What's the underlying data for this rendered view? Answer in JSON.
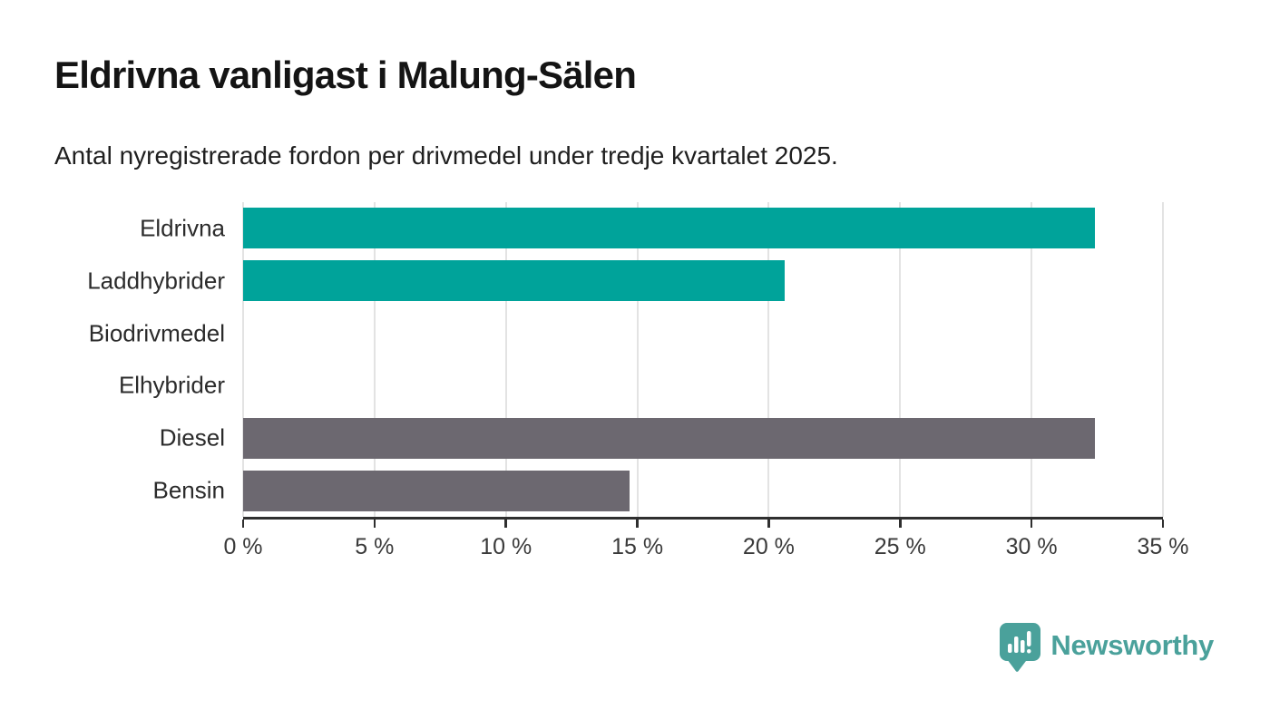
{
  "title": "Eldrivna vanligast i Malung-Sälen",
  "subtitle": "Antal nyregistrerade fordon per drivmedel under tredje kvartalet 2025.",
  "colors": {
    "electric_bar": "#00a39a",
    "fossil_bar": "#6c6870",
    "gridline": "#e3e3e3",
    "axis_line": "#2f2f2f",
    "tick_mark": "#2f2f2f",
    "tick_text": "#3a3a3a",
    "category_text": "#2b2b2b",
    "title_text": "#141414",
    "logo_teal": "#4aa19b"
  },
  "chart_data": {
    "type": "bar",
    "orientation": "horizontal",
    "title": "Eldrivna vanligast i Malung-Sälen",
    "subtitle": "Antal nyregistrerade fordon per drivmedel under tredje kvartalet 2025.",
    "categories": [
      "Eldrivna",
      "Laddhybrider",
      "Biodrivmedel",
      "Elhybrider",
      "Diesel",
      "Bensin"
    ],
    "values": [
      32.4,
      20.6,
      0,
      0,
      32.4,
      14.7
    ],
    "bar_colors": [
      "#00a39a",
      "#00a39a",
      "#00a39a",
      "#00a39a",
      "#6c6870",
      "#6c6870"
    ],
    "unit": "%",
    "xlim": [
      0,
      35
    ],
    "x_tick_step": 5,
    "x_tick_labels": [
      "0 %",
      "5 %",
      "10 %",
      "15 %",
      "20 %",
      "25 %",
      "30 %",
      "35 %"
    ],
    "xlabel": "",
    "ylabel": "",
    "grid": true,
    "legend": false
  },
  "logo": {
    "text": "Newsworthy",
    "icon": "newsworthy-pin-barchart-icon"
  }
}
